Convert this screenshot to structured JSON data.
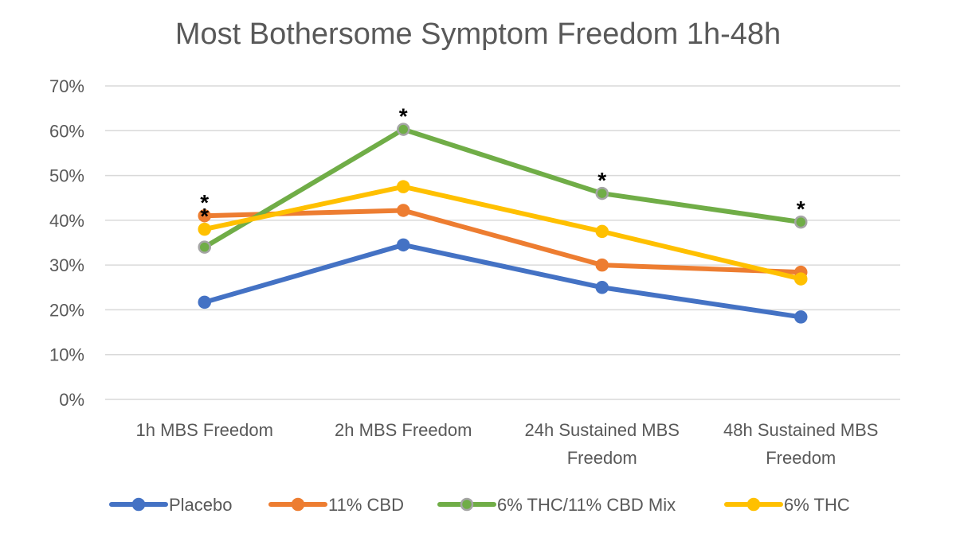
{
  "chart_data": {
    "type": "line",
    "title": "Most Bothersome Symptom Freedom 1h-48h",
    "xlabel": "",
    "ylabel": "",
    "ylim": [
      0,
      70
    ],
    "yticks": [
      0,
      10,
      20,
      30,
      40,
      50,
      60,
      70
    ],
    "ytick_labels": [
      "0%",
      "10%",
      "20%",
      "30%",
      "40%",
      "50%",
      "60%",
      "70%"
    ],
    "grid": true,
    "legend_position": "bottom",
    "categories": [
      [
        "1h MBS Freedom"
      ],
      [
        "2h MBS Freedom"
      ],
      [
        "24h Sustained MBS",
        "Freedom"
      ],
      [
        "48h Sustained MBS",
        "Freedom"
      ]
    ],
    "series": [
      {
        "name": "Placebo",
        "color": "#4472C4",
        "values": [
          21.7,
          34.5,
          25.0,
          18.4
        ]
      },
      {
        "name": "11% CBD",
        "color": "#ED7D31",
        "values": [
          41.0,
          42.2,
          30.0,
          28.4
        ]
      },
      {
        "name": "6% THC/11% CBD Mix",
        "color": "#70AD47",
        "marker_stroke": "#A5A5A5",
        "values": [
          34.0,
          60.3,
          46.0,
          39.6
        ]
      },
      {
        "name": "6% THC",
        "color": "#FFC000",
        "values": [
          38.0,
          47.5,
          37.5,
          26.9
        ]
      }
    ],
    "annotations": [
      {
        "text": "*",
        "category_index": 0,
        "y": 41.0
      },
      {
        "text": "*",
        "category_index": 0,
        "y": 38.0
      },
      {
        "text": "*",
        "category_index": 1,
        "y": 60.3
      },
      {
        "text": "*",
        "category_index": 2,
        "y": 46.0
      },
      {
        "text": "*",
        "category_index": 3,
        "y": 39.6
      }
    ]
  }
}
